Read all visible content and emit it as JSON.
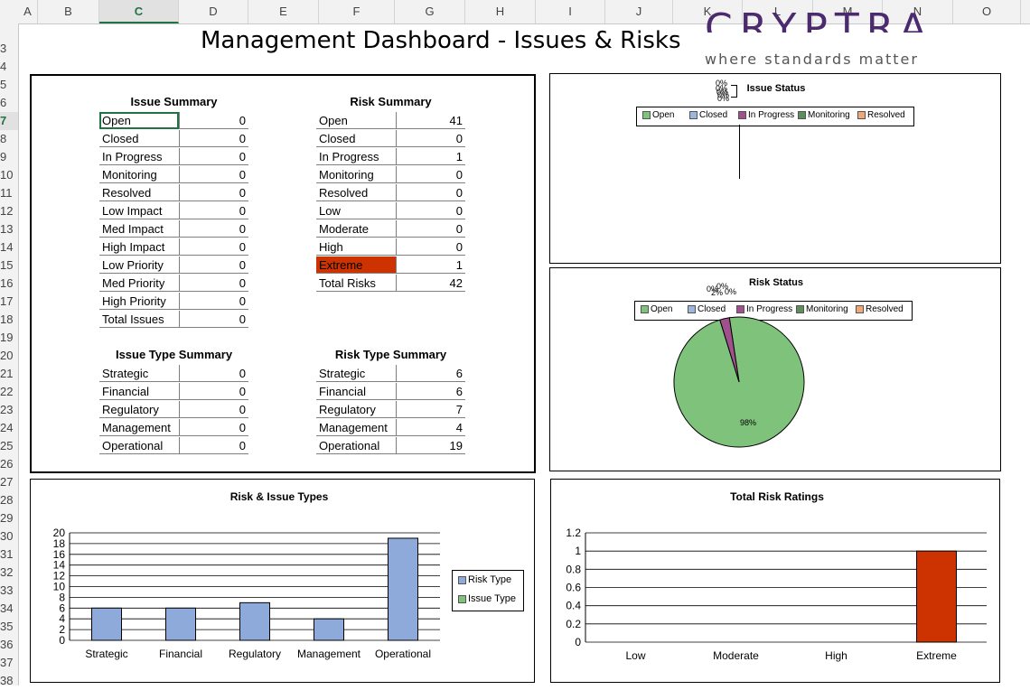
{
  "sheet": {
    "columns": [
      "A",
      "B",
      "C",
      "D",
      "E",
      "F",
      "G",
      "H",
      "I",
      "J",
      "K",
      "L",
      "M",
      "N",
      "O"
    ],
    "selected_column": "C",
    "rows": [
      "3",
      "4",
      "5",
      "6",
      "7",
      "8",
      "9",
      "10",
      "11",
      "12",
      "13",
      "14",
      "15",
      "16",
      "17",
      "18",
      "19",
      "20",
      "21",
      "22",
      "23",
      "24",
      "25",
      "26",
      "27",
      "28",
      "29",
      "30",
      "31",
      "32",
      "33",
      "34",
      "35",
      "36",
      "37",
      "38"
    ],
    "selected_row": "7"
  },
  "header": {
    "title": "Management Dashboard - Issues & Risks",
    "logo_word": "CRYPTRA",
    "logo_tagline": "where standards matter"
  },
  "colors": {
    "extreme": "#cc3300",
    "open": "#7fc27b",
    "closed": "#9bb7e0",
    "in_progress": "#a0508c",
    "monitoring": "#5c8f5c",
    "resolved": "#f0a878",
    "risk_type_bar": "#8eaadb",
    "issue_type_bar": "#7fc27b"
  },
  "issue_summary": {
    "title": "Issue Summary",
    "rows": [
      {
        "label": "Open",
        "value": "0"
      },
      {
        "label": "Closed",
        "value": "0"
      },
      {
        "label": "In Progress",
        "value": "0"
      },
      {
        "label": "Monitoring",
        "value": "0"
      },
      {
        "label": "Resolved",
        "value": "0"
      },
      {
        "label": "Low Impact",
        "value": "0"
      },
      {
        "label": "Med Impact",
        "value": "0"
      },
      {
        "label": "High Impact",
        "value": "0"
      },
      {
        "label": "Low Priority",
        "value": "0"
      },
      {
        "label": "Med Priority",
        "value": "0"
      },
      {
        "label": "High Priority",
        "value": "0"
      },
      {
        "label": "Total Issues",
        "value": "0"
      }
    ]
  },
  "risk_summary": {
    "title": "Risk Summary",
    "rows": [
      {
        "label": "Open",
        "value": "41"
      },
      {
        "label": "Closed",
        "value": "0"
      },
      {
        "label": "In Progress",
        "value": "1"
      },
      {
        "label": "Monitoring",
        "value": "0"
      },
      {
        "label": "Resolved",
        "value": "0"
      },
      {
        "label": "Low",
        "value": "0"
      },
      {
        "label": "Moderate",
        "value": "0"
      },
      {
        "label": "High",
        "value": "0"
      },
      {
        "label": "Extreme",
        "value": "1"
      },
      {
        "label": "Total Risks",
        "value": "42"
      }
    ]
  },
  "issue_type_summary": {
    "title": "Issue Type Summary",
    "rows": [
      {
        "label": "Strategic",
        "value": "0"
      },
      {
        "label": "Financial",
        "value": "0"
      },
      {
        "label": "Regulatory",
        "value": "0"
      },
      {
        "label": "Management",
        "value": "0"
      },
      {
        "label": "Operational",
        "value": "0"
      }
    ]
  },
  "risk_type_summary": {
    "title": "Risk Type Summary",
    "rows": [
      {
        "label": "Strategic",
        "value": "6"
      },
      {
        "label": "Financial",
        "value": "6"
      },
      {
        "label": "Regulatory",
        "value": "7"
      },
      {
        "label": "Management",
        "value": "4"
      },
      {
        "label": "Operational",
        "value": "19"
      }
    ]
  },
  "status_legend": [
    "Open",
    "Closed",
    "In Progress",
    "Monitoring",
    "Resolved"
  ],
  "chart_data": [
    {
      "type": "pie",
      "title": "Issue Status",
      "categories": [
        "Open",
        "Closed",
        "In Progress",
        "Monitoring",
        "Resolved"
      ],
      "values": [
        0,
        0,
        0,
        0,
        0
      ],
      "data_labels": [
        "0%",
        "0%",
        "0%",
        "0%",
        "0%"
      ]
    },
    {
      "type": "pie",
      "title": "Risk Status",
      "categories": [
        "Open",
        "Closed",
        "In Progress",
        "Monitoring",
        "Resolved"
      ],
      "values": [
        41,
        0,
        1,
        0,
        0
      ],
      "data_labels": [
        "98%",
        "0%",
        "2%",
        "0%",
        "0%"
      ]
    },
    {
      "type": "bar",
      "title": "Risk & Issue Types",
      "categories": [
        "Strategic",
        "Financial",
        "Regulatory",
        "Management",
        "Operational"
      ],
      "series": [
        {
          "name": "Risk Type",
          "values": [
            6,
            6,
            7,
            4,
            19
          ]
        },
        {
          "name": "Issue Type",
          "values": [
            0,
            0,
            0,
            0,
            0
          ]
        }
      ],
      "ylim": [
        0,
        20
      ],
      "yticks": [
        "0",
        "2",
        "4",
        "6",
        "8",
        "10",
        "12",
        "14",
        "16",
        "18",
        "20"
      ],
      "grid": true,
      "legend": "right"
    },
    {
      "type": "bar",
      "title": "Total Risk Ratings",
      "categories": [
        "Low",
        "Moderate",
        "High",
        "Extreme"
      ],
      "values": [
        0,
        0,
        0,
        1
      ],
      "ylim": [
        0,
        1.2
      ],
      "yticks": [
        "0",
        "0.2",
        "0.4",
        "0.6",
        "0.8",
        "1",
        "1.2"
      ],
      "grid": true
    }
  ]
}
